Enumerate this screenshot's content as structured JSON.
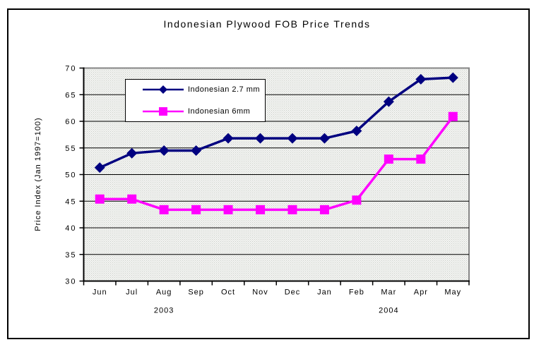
{
  "chart_data": {
    "type": "line",
    "title": "Indonesian Plywood FOB Price Trends",
    "ylabel": "Price Index (Jan 1997=100)",
    "xlabel": "",
    "ylim": [
      30,
      70
    ],
    "y_tick_step": 5,
    "y_tick_labels": [
      "30",
      "35",
      "40",
      "45",
      "50",
      "55",
      "60",
      "65",
      "70"
    ],
    "grid": true,
    "legend_position": "inside-top-left",
    "categories": [
      "Jun",
      "Jul",
      "Aug",
      "Sep",
      "Oct",
      "Nov",
      "Dec",
      "Jan",
      "Feb",
      "Mar",
      "Apr",
      "May"
    ],
    "year_labels": [
      {
        "label": "2003",
        "category_index": 2
      },
      {
        "label": "2004",
        "category_index": 9
      }
    ],
    "series": [
      {
        "name": "Indonesian 2.7 mm",
        "color": "#000080",
        "marker": "diamond",
        "values": [
          51.3,
          54.0,
          54.5,
          54.5,
          56.8,
          56.8,
          56.8,
          56.8,
          58.2,
          63.7,
          67.9,
          68.2
        ]
      },
      {
        "name": "Indonesian 6mm",
        "color": "#FF00FF",
        "marker": "square",
        "values": [
          45.4,
          45.4,
          43.4,
          43.4,
          43.4,
          43.4,
          43.4,
          43.4,
          45.2,
          52.9,
          52.9,
          60.9
        ]
      }
    ],
    "colors": {
      "grid": "#000000",
      "axis": "#000000",
      "plot_border": "#868686",
      "plot_fill_bg": "#f4f4f2",
      "plot_fill_dot": "#c9cfc9",
      "text": "#000000",
      "chart_background": "#ffffff"
    }
  }
}
